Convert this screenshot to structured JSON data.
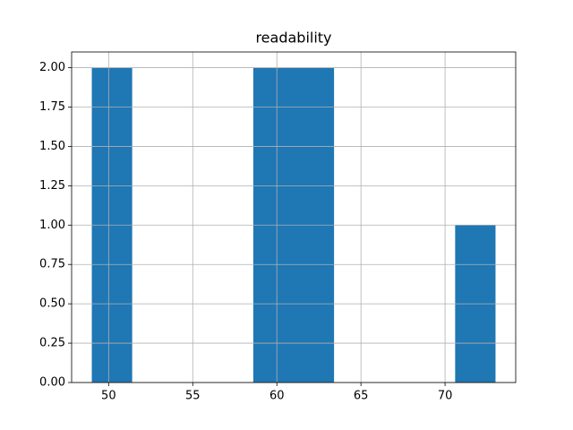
{
  "chart_data": {
    "type": "histogram",
    "title": "readability",
    "bins": [
      49,
      51.4,
      53.8,
      56.2,
      58.6,
      61,
      63.4,
      65.8,
      68.2,
      70.6,
      73
    ],
    "counts": [
      2,
      0,
      0,
      0,
      2,
      2,
      0,
      0,
      0,
      1
    ],
    "color": "#1f77b4",
    "xlim": [
      47.8,
      74.2
    ],
    "xticks": [
      50,
      55,
      60,
      65,
      70
    ],
    "ylim": [
      0,
      2.1
    ],
    "yticks": [
      {
        "value": 0,
        "label": "0.00"
      },
      {
        "value": 0.25,
        "label": "0.25"
      },
      {
        "value": 0.5,
        "label": "0.50"
      },
      {
        "value": 0.75,
        "label": "0.75"
      },
      {
        "value": 1,
        "label": "1.00"
      },
      {
        "value": 1.25,
        "label": "1.25"
      },
      {
        "value": 1.5,
        "label": "1.50"
      },
      {
        "value": 1.75,
        "label": "1.75"
      },
      {
        "value": 2,
        "label": "2.00"
      }
    ],
    "grid": true
  }
}
